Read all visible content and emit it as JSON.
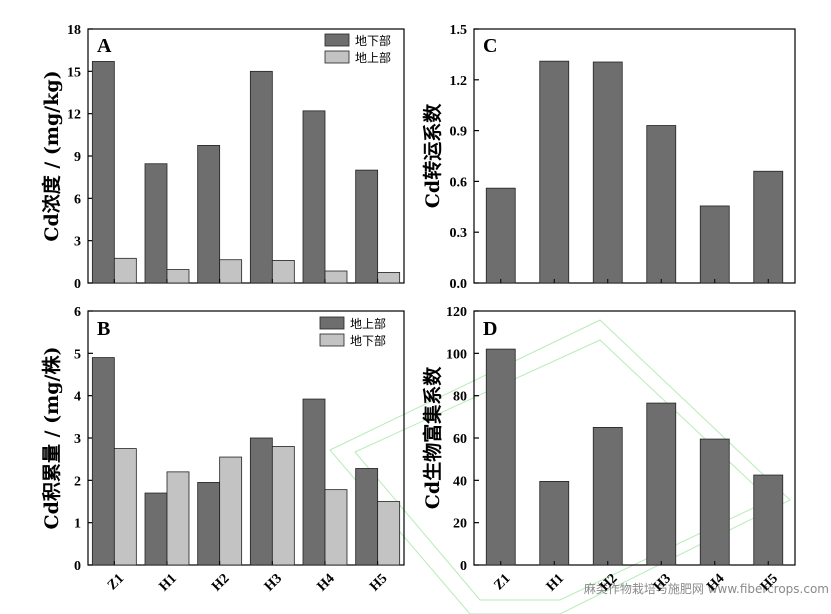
{
  "colors": {
    "dark_bar": "#6e6e6e",
    "light_bar": "#c3c3c3",
    "axis": "#000000",
    "watermark_stroke": "#7ddc7d"
  },
  "watermark": {
    "text": "麻类作物栽培与施肥网 www.fibercrops.com"
  },
  "chart_data": [
    {
      "panel": "A",
      "type": "bar",
      "ylabel": "Cd浓度 / (mg/kg)",
      "ylim": [
        0,
        18
      ],
      "yticks": [
        "0",
        "3",
        "6",
        "9",
        "12",
        "15",
        "18"
      ],
      "categories": [
        "Z1",
        "H1",
        "H2",
        "H3",
        "H4",
        "H5"
      ],
      "legend_position": "top-right",
      "series": [
        {
          "name": "地下部",
          "color": "#6e6e6e",
          "values": [
            15.7,
            8.45,
            9.75,
            15.0,
            12.2,
            8.0
          ]
        },
        {
          "name": "地上部",
          "color": "#c3c3c3",
          "values": [
            1.75,
            0.95,
            1.65,
            1.6,
            0.85,
            0.75
          ]
        }
      ],
      "grid": false
    },
    {
      "panel": "C",
      "type": "bar",
      "ylabel": "Cd转运系数",
      "ylim": [
        0,
        1.5
      ],
      "yticks": [
        "0.0",
        "0.3",
        "0.6",
        "0.9",
        "1.2",
        "1.5"
      ],
      "categories": [
        "Z1",
        "H1",
        "H2",
        "H3",
        "H4",
        "H5"
      ],
      "series": [
        {
          "color": "#6e6e6e",
          "values": [
            0.56,
            1.31,
            1.305,
            0.93,
            0.455,
            0.66
          ]
        }
      ],
      "grid": false
    },
    {
      "panel": "B",
      "type": "bar",
      "ylabel": "Cd积累量 / (mg/株)",
      "ylim": [
        0,
        6
      ],
      "yticks": [
        "0",
        "1",
        "2",
        "3",
        "4",
        "5",
        "6"
      ],
      "categories": [
        "Z1",
        "H1",
        "H2",
        "H3",
        "H4",
        "H5"
      ],
      "legend_position": "top-right",
      "series": [
        {
          "name": "地上部",
          "color": "#6e6e6e",
          "values": [
            4.9,
            1.7,
            1.95,
            3.0,
            3.92,
            2.28
          ]
        },
        {
          "name": "地下部",
          "color": "#c3c3c3",
          "values": [
            2.75,
            2.2,
            2.55,
            2.8,
            1.78,
            1.5
          ]
        }
      ],
      "grid": false
    },
    {
      "panel": "D",
      "type": "bar",
      "ylabel": "Cd生物富集系数",
      "ylim": [
        0,
        120
      ],
      "yticks": [
        "0",
        "20",
        "40",
        "60",
        "80",
        "100",
        "120"
      ],
      "categories": [
        "Z1",
        "H1",
        "H2",
        "H3",
        "H4",
        "H5"
      ],
      "series": [
        {
          "color": "#6e6e6e",
          "values": [
            102,
            39.5,
            65,
            76.5,
            59.5,
            42.5
          ]
        }
      ],
      "grid": false
    }
  ]
}
